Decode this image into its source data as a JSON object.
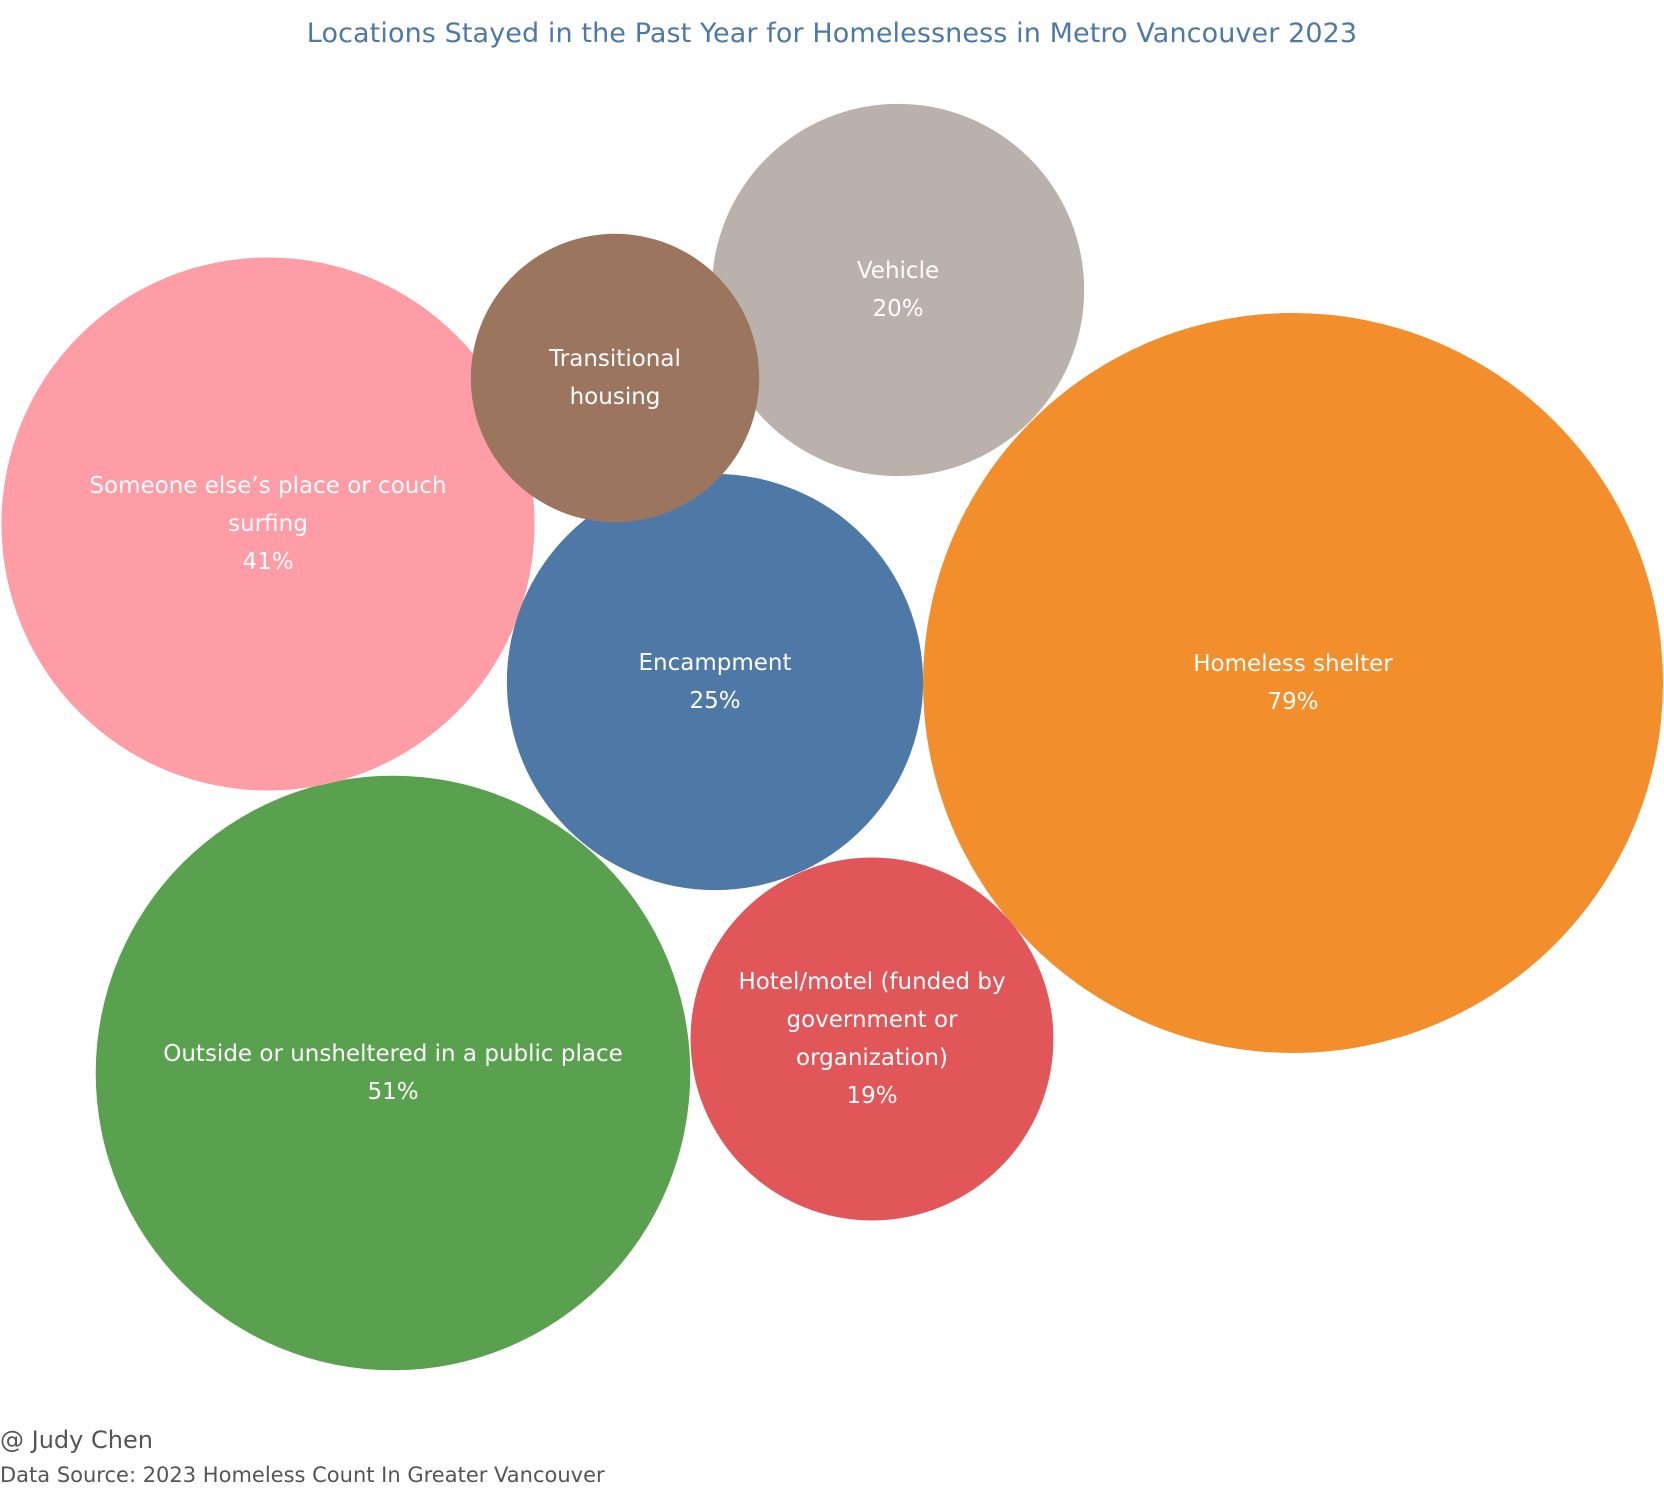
{
  "chart_data": {
    "type": "bubble",
    "title": "Locations Stayed in the Past Year for Homelessness in Metro Vancouver 2023",
    "unit": "%",
    "bubbles": [
      {
        "category_lines": [
          "Homeless shelter"
        ],
        "value": 79,
        "value_label": "79%",
        "color": "#f28e2b"
      },
      {
        "category_lines": [
          "Outside or unsheltered in a public place"
        ],
        "value": 51,
        "value_label": "51%",
        "color": "#59a14f"
      },
      {
        "category_lines": [
          "Someone else’s place or couch",
          "surfing"
        ],
        "value": 41,
        "value_label": "41%",
        "color": "#ff9da7"
      },
      {
        "category_lines": [
          "Encampment"
        ],
        "value": 25,
        "value_label": "25%",
        "color": "#4e79a7"
      },
      {
        "category_lines": [
          "Vehicle"
        ],
        "value": 20,
        "value_label": "20%",
        "color": "#bab0ac"
      },
      {
        "category_lines": [
          "Hotel/motel (funded by",
          "government or",
          "organization)"
        ],
        "value": 19,
        "value_label": "19%",
        "color": "#e15759"
      },
      {
        "category_lines": [
          "Transitional",
          "housing"
        ],
        "value": 12,
        "value_label": "",
        "color": "#9c755f"
      }
    ]
  },
  "footer": {
    "author": "@ Judy Chen",
    "source": "Data Source: 2023 Homeless Count In Greater Vancouver"
  }
}
